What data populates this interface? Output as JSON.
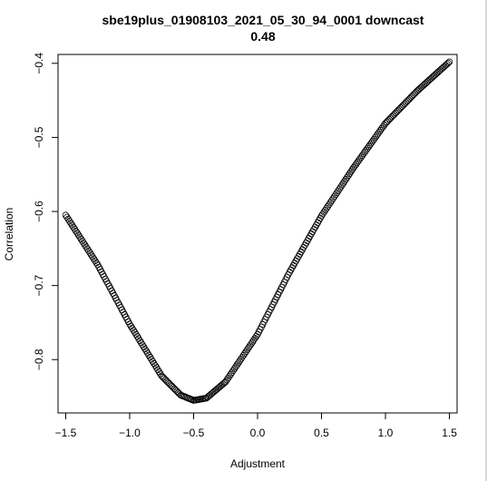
{
  "chart_data": {
    "type": "scatter",
    "title": "sbe19plus_01908103_2021_05_30_94_0001 downcast",
    "subtitle": "0.48",
    "xlabel": "Adjustment",
    "ylabel": "Correlation",
    "xlim": [
      -1.56,
      1.56
    ],
    "ylim": [
      -0.872,
      -0.388
    ],
    "xticks": [
      -1.5,
      -1.0,
      -0.5,
      0.0,
      0.5,
      1.0,
      1.5
    ],
    "xtick_labels": [
      "−1.5",
      "−1.0",
      "−0.5",
      "0.0",
      "0.5",
      "1.0",
      "1.5"
    ],
    "yticks": [
      -0.8,
      -0.7,
      -0.6,
      -0.5,
      -0.4
    ],
    "ytick_labels": [
      "−0.8",
      "−0.7",
      "−0.6",
      "−0.5",
      "−0.4"
    ],
    "grid": false,
    "marker": "open-circle",
    "point_color": "#000000",
    "x_range": [
      -1.5,
      1.5
    ],
    "x_step": 0.01,
    "curve_knots": {
      "x": [
        -1.5,
        -1.25,
        -1.0,
        -0.75,
        -0.6,
        -0.5,
        -0.4,
        -0.25,
        0.0,
        0.25,
        0.5,
        0.75,
        1.0,
        1.25,
        1.5
      ],
      "y": [
        -0.605,
        -0.672,
        -0.752,
        -0.822,
        -0.848,
        -0.855,
        -0.852,
        -0.83,
        -0.766,
        -0.682,
        -0.606,
        -0.541,
        -0.481,
        -0.437,
        -0.398
      ]
    }
  }
}
